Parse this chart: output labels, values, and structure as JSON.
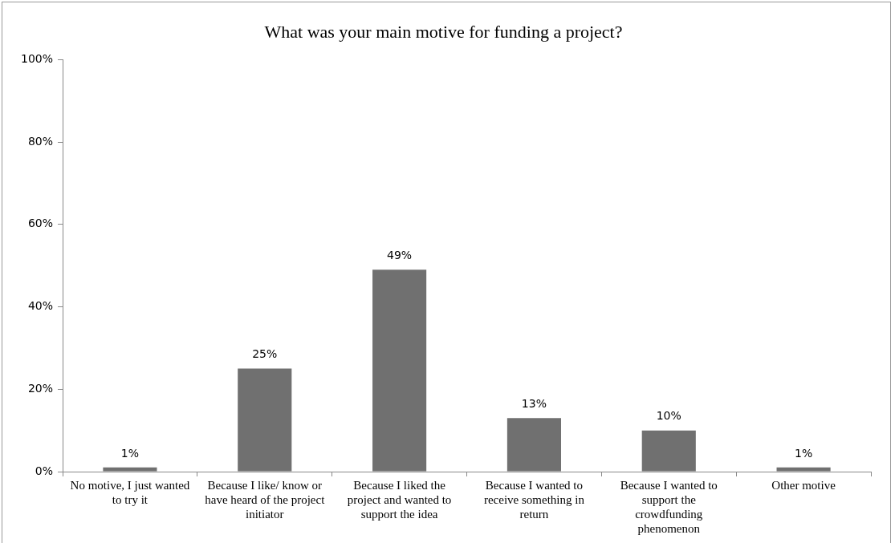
{
  "chart_data": {
    "type": "bar",
    "title": "What was your main motive for funding a project?",
    "categories": [
      "No motive, I just wanted to try it",
      "Because I like/ know or have heard of the project initiator",
      "Because I liked the project and wanted to support the idea",
      "Because I wanted to receive something in return",
      "Because I wanted to support the crowdfunding phenomenon",
      "Other motive"
    ],
    "values": [
      1,
      25,
      49,
      13,
      10,
      1
    ],
    "value_labels": [
      "1%",
      "25%",
      "49%",
      "13%",
      "10%",
      "1%"
    ],
    "color": "#707070",
    "ylim": [
      0,
      100
    ],
    "yticks": [
      {
        "value": 0,
        "label": "0%"
      },
      {
        "value": 20,
        "label": "20%"
      },
      {
        "value": 40,
        "label": "40%"
      },
      {
        "value": 60,
        "label": "60%"
      },
      {
        "value": 80,
        "label": "80%"
      },
      {
        "value": 100,
        "label": "100%"
      }
    ],
    "grid": false,
    "legend": false
  }
}
